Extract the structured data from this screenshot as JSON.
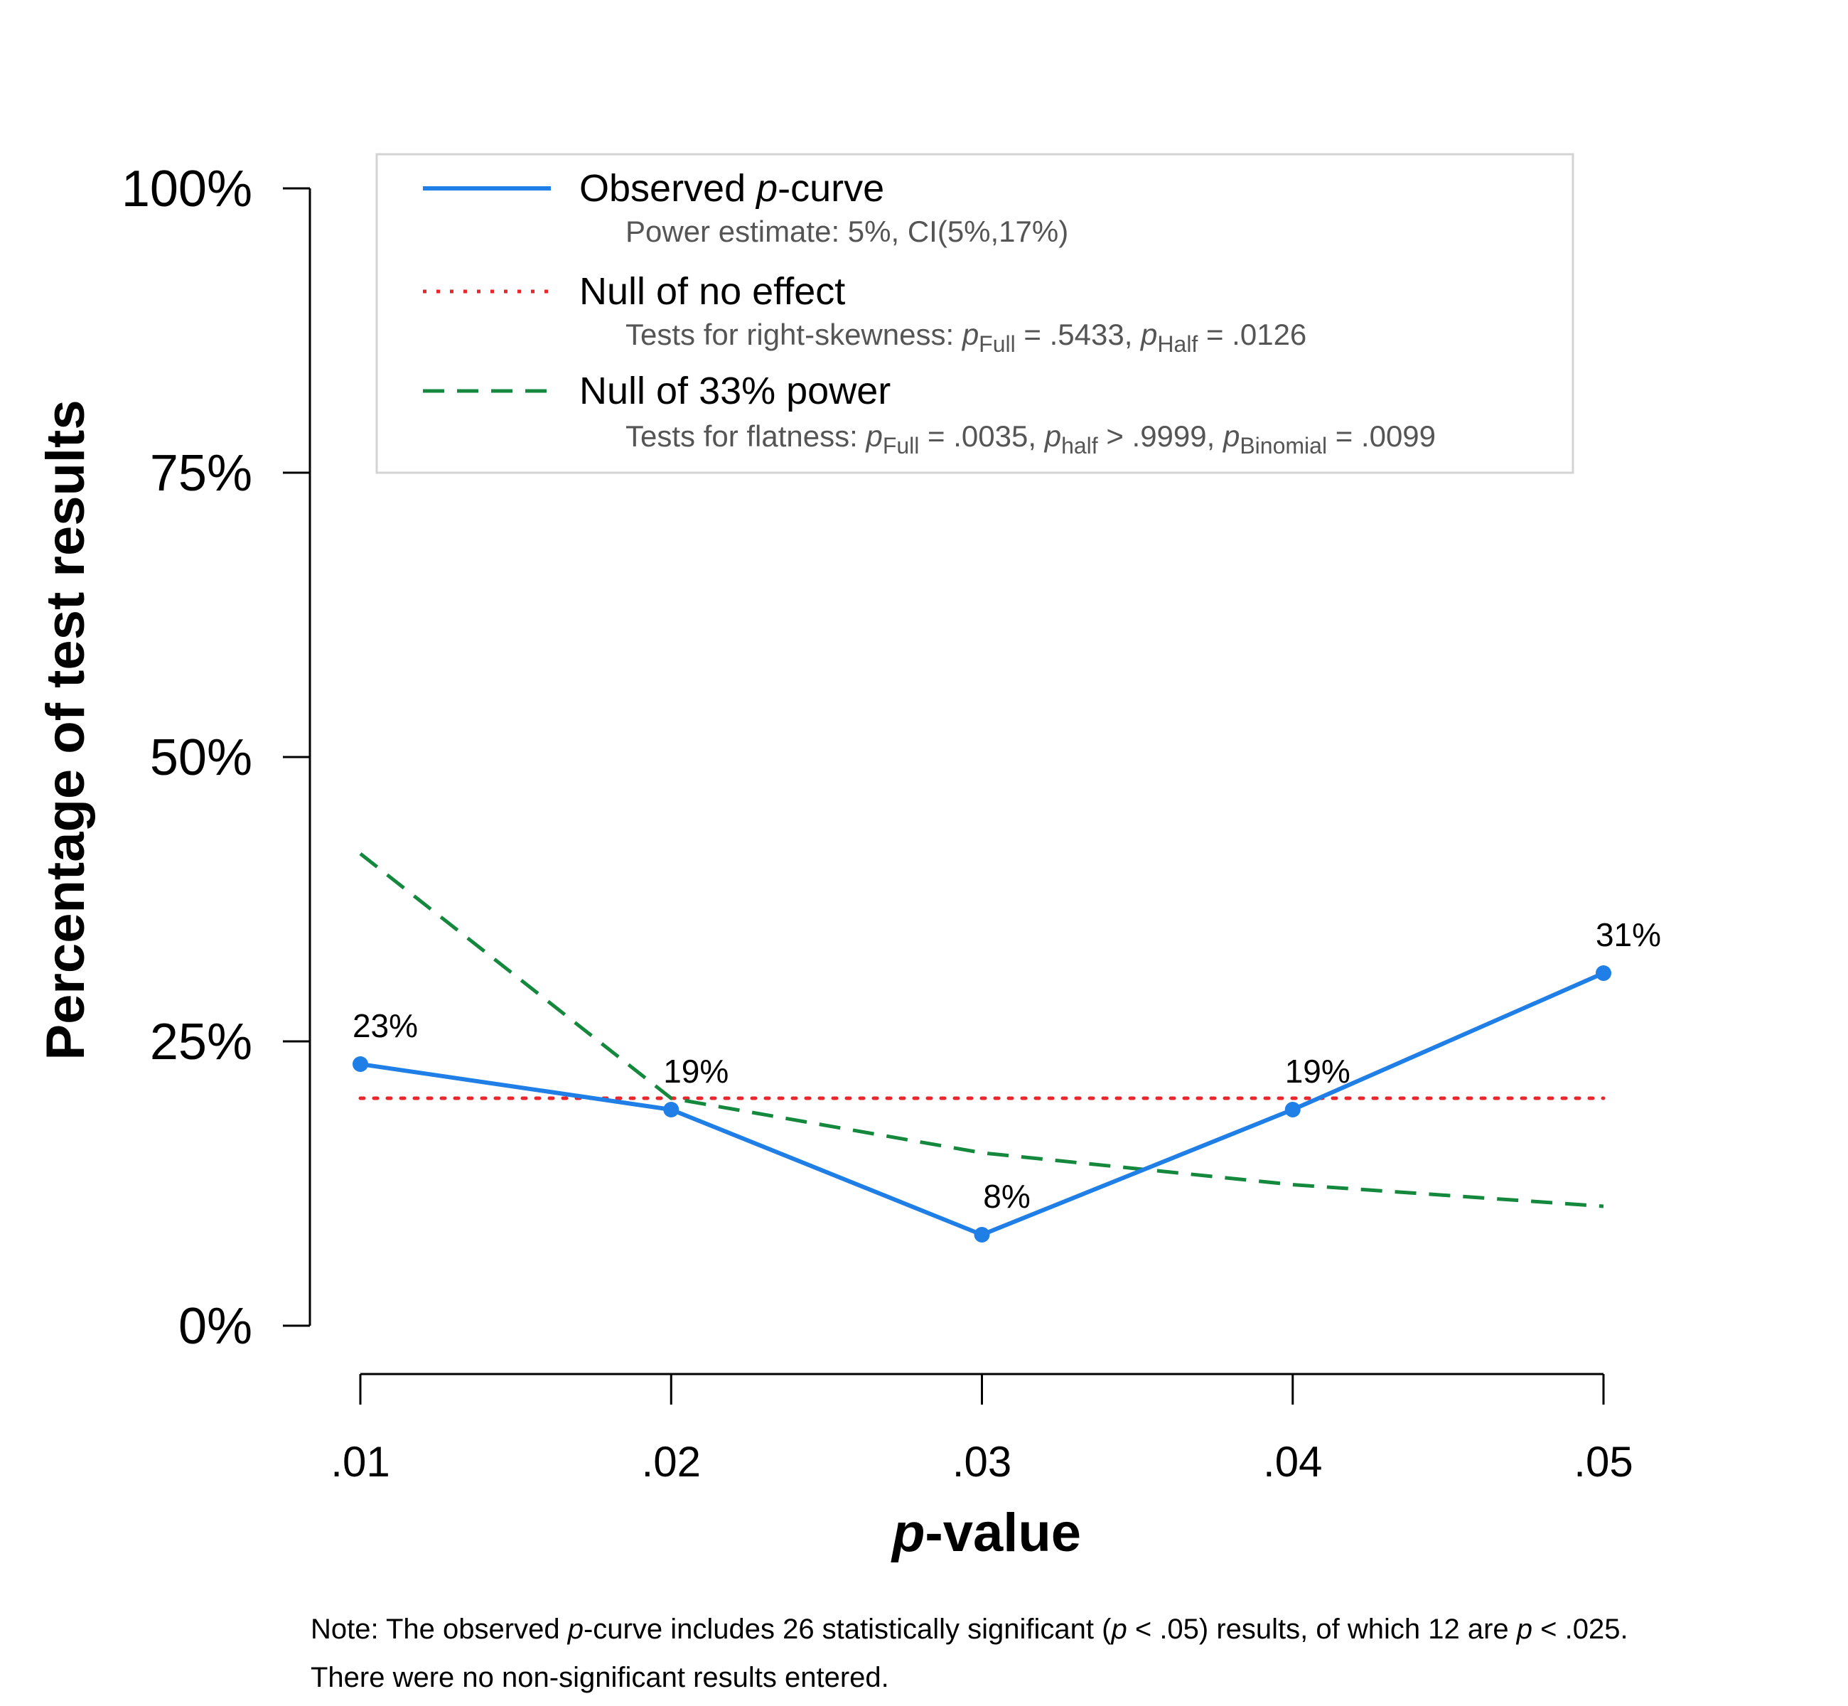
{
  "chart_data": {
    "type": "line",
    "xlabel_italic": "p",
    "xlabel_rest": "-value",
    "ylabel": "Percentage of test results",
    "x": [
      ".01",
      ".02",
      ".03",
      ".04",
      ".05"
    ],
    "x_values": [
      0.01,
      0.02,
      0.03,
      0.04,
      0.05
    ],
    "yticks": [
      "0%",
      "25%",
      "50%",
      "75%",
      "100%"
    ],
    "ylim": [
      0,
      100
    ],
    "xlim": [
      0.01,
      0.05
    ],
    "series": [
      {
        "id": "observed",
        "color": "#1f7fe6",
        "style": "solid",
        "markers": true,
        "values": [
          23,
          19,
          8,
          19,
          31
        ],
        "data_labels": [
          "23%",
          "19%",
          "8%",
          "19%",
          "31%"
        ]
      },
      {
        "id": "null_no_effect",
        "color": "#e8262b",
        "style": "dotted",
        "markers": false,
        "values": [
          20,
          20,
          20,
          20,
          20
        ]
      },
      {
        "id": "null_33_power",
        "color": "#14883c",
        "style": "dashed",
        "markers": false,
        "values": [
          41.5,
          20,
          15.2,
          12.4,
          10.5
        ]
      }
    ],
    "legend": {
      "placement": "top",
      "entries": [
        {
          "series": "observed",
          "label_pre": "Observed ",
          "label_italic": "p",
          "label_post": "-curve",
          "sub": "Power estimate: 5%, CI(5%,17%)"
        },
        {
          "series": "null_no_effect",
          "label": "Null of no effect",
          "sub_parts": [
            "Tests for right-skewness: ",
            "p",
            "Full",
            " = .5433,  ",
            "p",
            "Half",
            " = .0126"
          ]
        },
        {
          "series": "null_33_power",
          "label": "Null of 33% power",
          "sub_parts": [
            "Tests for flatness: ",
            "p",
            "Full",
            " = .0035,  ",
            "p",
            "half",
            "  > .9999,  ",
            "p",
            "Binomial",
            " = .0099"
          ]
        }
      ]
    }
  },
  "note": {
    "line1": [
      "Note: The observed ",
      "p",
      "-curve includes 26 statistically significant (",
      "p",
      " < .05) results, of which 12 are ",
      "p",
      " < .025."
    ],
    "line2": "There were no non-significant results entered."
  }
}
